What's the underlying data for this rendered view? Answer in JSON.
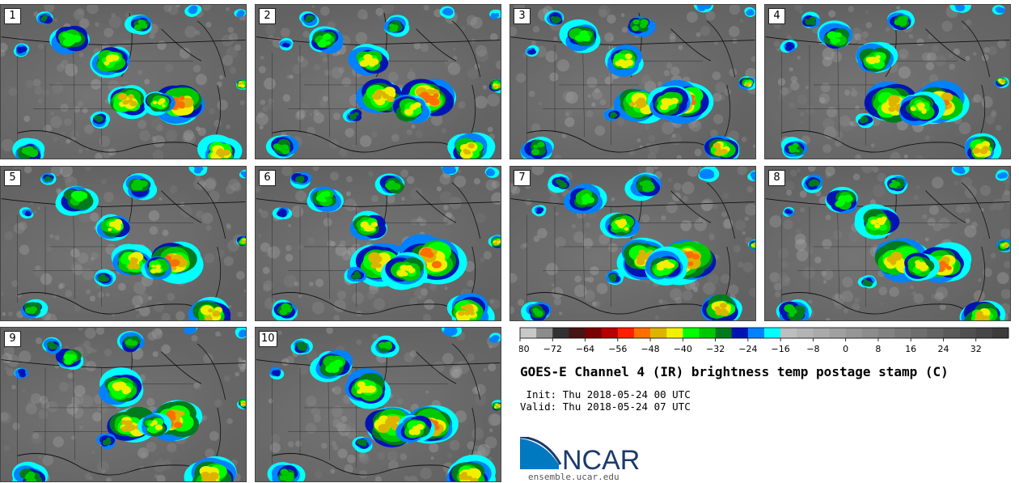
{
  "panels": [
    {
      "number": "1"
    },
    {
      "number": "2"
    },
    {
      "number": "3"
    },
    {
      "number": "4"
    },
    {
      "number": "5"
    },
    {
      "number": "6"
    },
    {
      "number": "7"
    },
    {
      "number": "8"
    },
    {
      "number": "9"
    },
    {
      "number": "10"
    }
  ],
  "colorbar": {
    "ticks": [
      "−80",
      "−72",
      "−64",
      "−56",
      "−48",
      "−40",
      "−32",
      "−24",
      "−16",
      "−8",
      "0",
      "8",
      "16",
      "24",
      "32"
    ],
    "colors": [
      "#c8c8c8",
      "#8c8c8c",
      "#323232",
      "#461414",
      "#7a0000",
      "#b40000",
      "#ff1e00",
      "#ff6e00",
      "#dcb400",
      "#f0f000",
      "#00ff00",
      "#00c800",
      "#007a1e",
      "#0014b4",
      "#0082ff",
      "#00ffff",
      "#bebebe",
      "#b4b4b4",
      "#aaaaaa",
      "#a0a0a0",
      "#969696",
      "#8c8c8c",
      "#828282",
      "#787878",
      "#6e6e6e",
      "#646464",
      "#5a5a5a",
      "#505050",
      "#464646",
      "#3c3c3c"
    ]
  },
  "title": "GOES-E Channel 4 (IR) brightness temp postage stamp (C)",
  "init_text": " Init: Thu 2018-05-24 00 UTC",
  "valid_text": "Valid: Thu 2018-05-24 07 UTC",
  "logo": {
    "name": "NCAR",
    "url": "ensemble.ucar.edu",
    "blue": "#0079c1",
    "navy": "#1b3a6b"
  }
}
